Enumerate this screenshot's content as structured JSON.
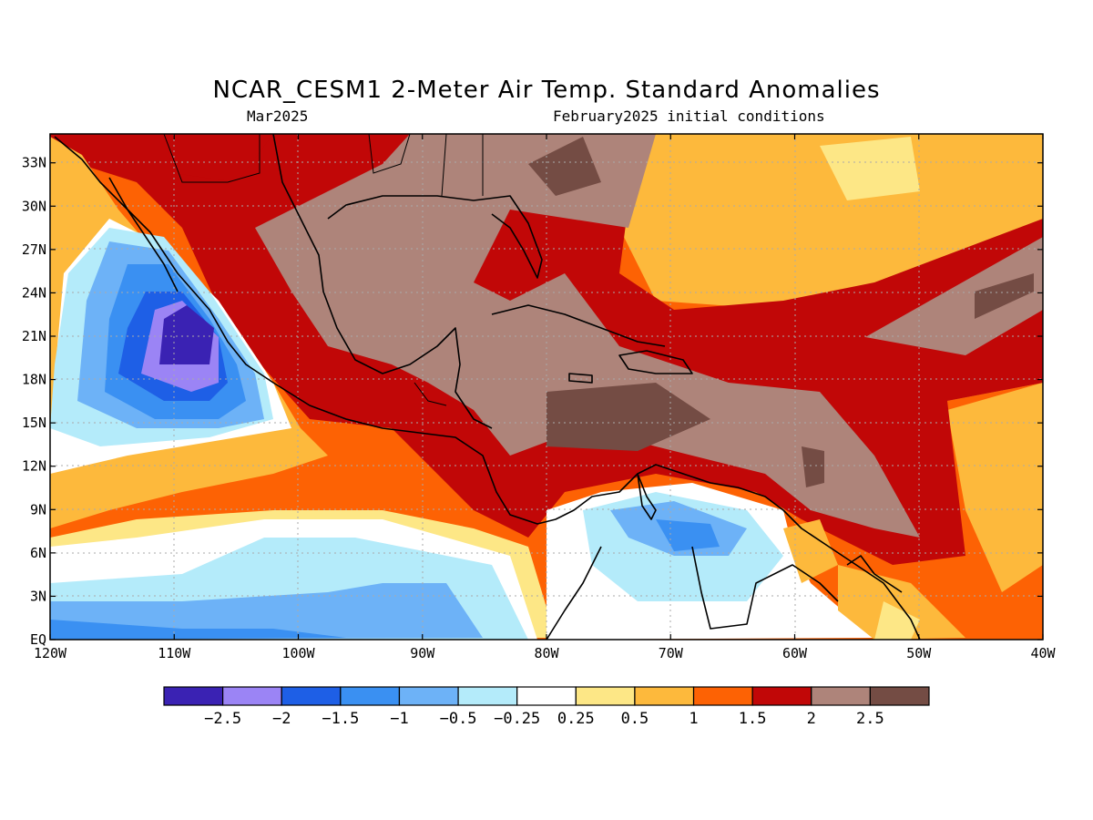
{
  "title": "NCAR_CESM1 2-Meter Air Temp. Standard Anomalies",
  "subtitle_left": "Mar2025",
  "subtitle_right": "February2025 initial conditions",
  "map": {
    "lon_range": [
      -120,
      -40
    ],
    "lat_range": [
      0,
      35
    ],
    "lat_ticks": [
      {
        "value": 33,
        "label": "33N"
      },
      {
        "value": 30,
        "label": "30N"
      },
      {
        "value": 27,
        "label": "27N"
      },
      {
        "value": 24,
        "label": "24N"
      },
      {
        "value": 21,
        "label": "21N"
      },
      {
        "value": 18,
        "label": "18N"
      },
      {
        "value": 15,
        "label": "15N"
      },
      {
        "value": 12,
        "label": "12N"
      },
      {
        "value": 9,
        "label": "9N"
      },
      {
        "value": 6,
        "label": "6N"
      },
      {
        "value": 3,
        "label": "3N"
      },
      {
        "value": 0,
        "label": "EQ"
      }
    ],
    "lon_ticks": [
      {
        "value": -120,
        "label": "120W"
      },
      {
        "value": -110,
        "label": "110W"
      },
      {
        "value": -100,
        "label": "100W"
      },
      {
        "value": -90,
        "label": "90W"
      },
      {
        "value": -80,
        "label": "80W"
      },
      {
        "value": -70,
        "label": "70W"
      },
      {
        "value": -60,
        "label": "60W"
      },
      {
        "value": -50,
        "label": "50W"
      },
      {
        "value": -40,
        "label": "40W"
      }
    ],
    "grid": "dotted"
  },
  "colorbar": {
    "colors": [
      "#3a22b3",
      "#9b84f5",
      "#1e5fe6",
      "#3a90f2",
      "#6db2f7",
      "#b4ebfa",
      "#ffffff",
      "#fde786",
      "#fdb93c",
      "#fd6204",
      "#c10707",
      "#ae847a",
      "#744c44"
    ],
    "labels": [
      "-2.5",
      "-2",
      "-1.5",
      "-1",
      "-0.5",
      "-0.25",
      "0.25",
      "0.5",
      "1",
      "1.5",
      "2",
      "2.5"
    ]
  }
}
